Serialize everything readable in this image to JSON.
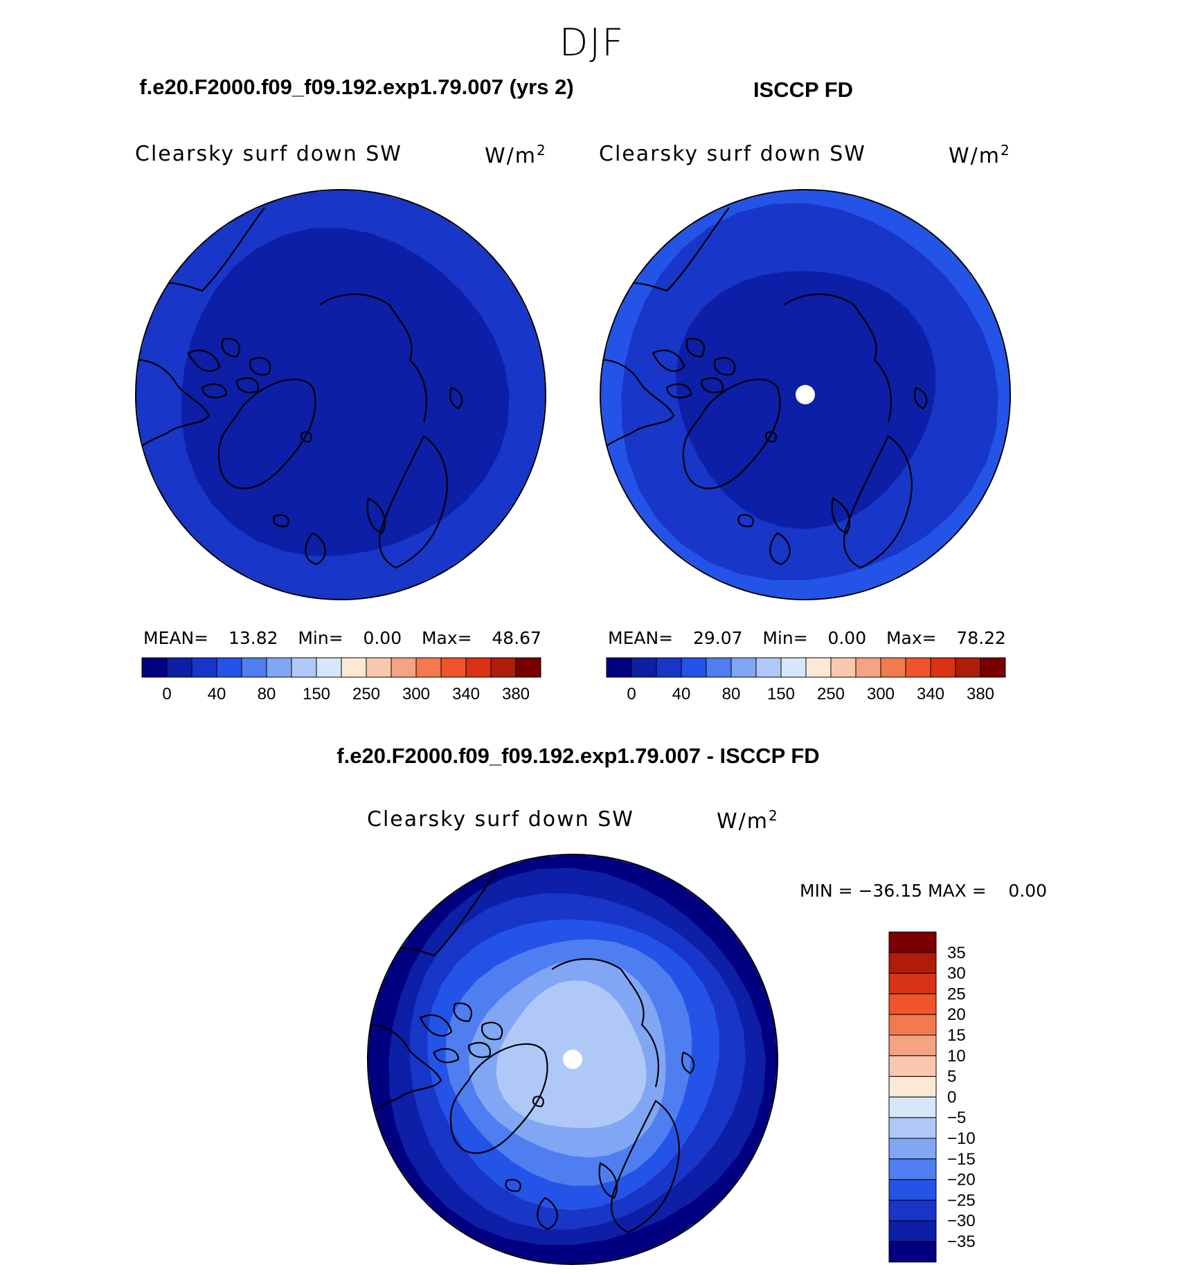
{
  "page": {
    "title": "DJF",
    "panel1_title": "f.e20.F2000.f09_f09.192.exp1.79.007 (yrs 2)",
    "panel2_title": "ISCCP FD",
    "diff_title": "f.e20.F2000.f09_f09.192.exp1.79.007 - ISCCP FD"
  },
  "panels": [
    {
      "variable": "Clearsky surf down SW",
      "units_base": "W/m",
      "units_exp": "2",
      "stats": {
        "mean_label": "MEAN=",
        "mean": "13.82",
        "min_label": "Min=",
        "min": "0.00",
        "max_label": "Max=",
        "max": "48.67"
      }
    },
    {
      "variable": "Clearsky surf down SW",
      "units_base": "W/m",
      "units_exp": "2",
      "stats": {
        "mean_label": "MEAN=",
        "mean": "29.07",
        "min_label": "Min=",
        "min": "0.00",
        "max_label": "Max=",
        "max": "78.22"
      }
    },
    {
      "variable": "Clearsky surf down SW",
      "units_base": "W/m",
      "units_exp": "2",
      "stats": {
        "min_max": "MIN = −36.15 MAX =    0.00"
      }
    }
  ],
  "colors": {
    "abs_scale": [
      "#000080",
      "#0c1fa6",
      "#1836c8",
      "#2453e8",
      "#4f7ef0",
      "#80a6f4",
      "#b0c8f7",
      "#d8e6f9",
      "#fbe9d6",
      "#f9c8ae",
      "#f5a382",
      "#f27a4e",
      "#f0542a",
      "#d93214",
      "#b01c09",
      "#7a0000"
    ],
    "diff_scale": [
      "#7a0000",
      "#b01c09",
      "#d93214",
      "#f0542a",
      "#f27a4e",
      "#f5a382",
      "#f9c8ae",
      "#fbe9d6",
      "#d8e6f9",
      "#b0c8f7",
      "#80a6f4",
      "#4f7ef0",
      "#2453e8",
      "#1836c8",
      "#0c1fa6",
      "#000080"
    ]
  },
  "chart_data": [
    {
      "type": "heatmap",
      "projection": "polar stereographic (north)",
      "title": "Clearsky surf down SW",
      "units": "W/m2",
      "zone_values_outer_to_inner": [
        40,
        20
      ],
      "colorbar_ticks": [
        "0",
        "40",
        "80",
        "150",
        "250",
        "300",
        "340",
        "380"
      ],
      "mean": 13.82,
      "min": 0.0,
      "max": 48.67
    },
    {
      "type": "heatmap",
      "projection": "polar stereographic (north)",
      "title": "Clearsky surf down SW",
      "units": "W/m2",
      "zone_values_outer_to_inner": [
        60,
        50,
        40,
        20
      ],
      "colorbar_ticks": [
        "0",
        "40",
        "80",
        "150",
        "250",
        "300",
        "340",
        "380"
      ],
      "mean": 29.07,
      "min": 0.0,
      "max": 78.22
    },
    {
      "type": "heatmap",
      "projection": "polar stereographic (north)",
      "title": "Clearsky surf down SW",
      "units": "W/m2",
      "zone_values_outer_to_inner": [
        -35,
        -30,
        -25,
        -20,
        -15,
        -10,
        -5
      ],
      "colorbar_ticks": [
        "35",
        "30",
        "25",
        "20",
        "15",
        "10",
        "5",
        "0",
        "−5",
        "−10",
        "−15",
        "−20",
        "−25",
        "−30",
        "−35"
      ],
      "min": -36.15,
      "max": 0.0
    }
  ]
}
